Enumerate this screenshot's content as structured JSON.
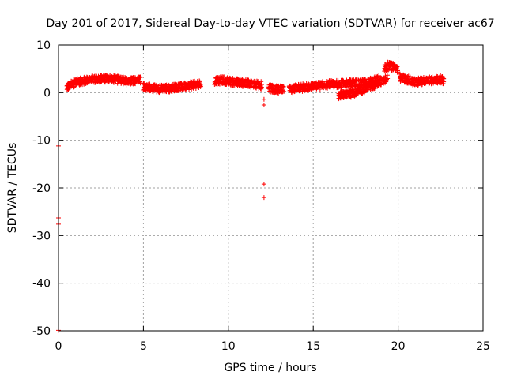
{
  "chart_data": {
    "type": "scatter",
    "title": "Day 201 of 2017, Sidereal Day-to-day VTEC variation (SDTVAR) for receiver ac67",
    "xlabel": "GPS time / hours",
    "ylabel": "SDTVAR / TECUs",
    "xlim": [
      0,
      25
    ],
    "ylim": [
      -50,
      10
    ],
    "x_ticks": [
      0,
      5,
      10,
      15,
      20,
      25
    ],
    "y_ticks": [
      -50,
      -40,
      -30,
      -20,
      -10,
      0,
      10
    ],
    "grid": true,
    "marker": "+",
    "color": "#ff0000",
    "series": [
      {
        "name": "SDTVAR",
        "segments": [
          {
            "x": [
              0.5,
              1.0,
              1.5,
              2.0,
              2.5,
              3.0,
              3.5,
              4.0,
              4.5,
              4.85
            ],
            "y": [
              1.2,
              2.2,
              2.5,
              2.8,
              2.9,
              3.0,
              2.7,
              2.4,
              2.6,
              2.8
            ]
          },
          {
            "x": [
              5.0,
              5.5,
              6.0,
              6.5,
              7.0,
              7.5,
              8.0,
              8.4
            ],
            "y": [
              1.3,
              1.0,
              0.8,
              0.9,
              1.2,
              1.3,
              1.6,
              1.8
            ]
          },
          {
            "x": [
              9.2,
              9.7,
              10.2,
              10.7,
              11.2,
              11.6,
              12.0
            ],
            "y": [
              2.5,
              2.6,
              2.3,
              2.1,
              2.0,
              1.7,
              1.5
            ]
          },
          {
            "x": [
              12.4,
              12.9,
              13.3
            ],
            "y": [
              0.9,
              0.6,
              1.0
            ]
          },
          {
            "x": [
              13.6,
              14.0,
              14.5,
              15.0,
              15.5,
              16.0,
              16.5,
              17.0,
              17.5,
              18.0,
              18.5,
              18.9
            ],
            "y": [
              0.6,
              0.9,
              1.1,
              1.3,
              1.5,
              1.8,
              1.8,
              1.9,
              2.0,
              2.1,
              2.4,
              2.8
            ]
          },
          {
            "x": [
              16.5,
              17.0,
              17.5,
              18.0,
              18.5,
              19.0,
              19.4
            ],
            "y": [
              -0.5,
              -0.4,
              0.0,
              0.7,
              1.5,
              2.3,
              3.1
            ]
          },
          {
            "x": [
              19.2,
              19.4,
              19.6,
              19.8,
              20.0
            ],
            "y": [
              5.0,
              5.6,
              5.5,
              5.3,
              4.8
            ]
          },
          {
            "x": [
              20.1,
              20.5,
              21.0,
              21.5,
              22.0,
              22.5,
              22.7
            ],
            "y": [
              3.2,
              2.8,
              2.2,
              2.5,
              2.6,
              2.8,
              2.5
            ]
          }
        ],
        "isolated_points": [
          {
            "x": 0.0,
            "y": -11.2
          },
          {
            "x": 0.0,
            "y": -26.3
          },
          {
            "x": 0.0,
            "y": -27.6
          },
          {
            "x": 0.0,
            "y": -49.9
          },
          {
            "x": 12.1,
            "y": -1.4
          },
          {
            "x": 12.1,
            "y": -2.6
          },
          {
            "x": 12.1,
            "y": -19.2
          },
          {
            "x": 12.1,
            "y": -22.0
          }
        ]
      }
    ]
  }
}
